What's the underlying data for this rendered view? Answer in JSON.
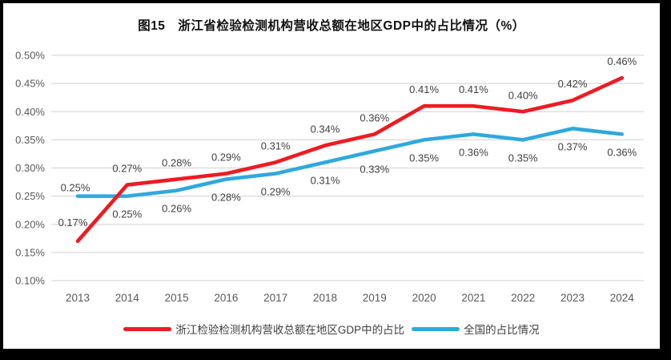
{
  "header": {
    "title": "图15　浙江省检验检测机构营收总额在地区GDP中的占比情况（%）"
  },
  "chart_data": {
    "type": "line",
    "title": "图15　浙江省检验检测机构营收总额在地区GDP中的占比情况（%）",
    "categories": [
      "2013",
      "2014",
      "2015",
      "2016",
      "2017",
      "2018",
      "2019",
      "2020",
      "2021",
      "2022",
      "2023",
      "2024"
    ],
    "series": [
      {
        "name": "浙江检验检测机构营收总额在地区GDP中的占比",
        "color": "#EE1B22",
        "values": [
          0.17,
          0.27,
          0.28,
          0.29,
          0.31,
          0.34,
          0.36,
          0.41,
          0.41,
          0.4,
          0.42,
          0.46
        ],
        "labels": [
          "0.17%",
          "0.27%",
          "0.28%",
          "0.29%",
          "0.31%",
          "0.34%",
          "0.36%",
          "0.41%",
          "0.41%",
          "0.40%",
          "0.42%",
          "0.46%"
        ],
        "label_position": "above"
      },
      {
        "name": "全国的占比情况",
        "color": "#2FA9DC",
        "values": [
          0.25,
          0.25,
          0.26,
          0.28,
          0.29,
          0.31,
          0.33,
          0.35,
          0.36,
          0.35,
          0.37,
          0.36
        ],
        "labels": [
          "0.25%",
          "0.25%",
          "0.26%",
          "0.28%",
          "0.29%",
          "0.31%",
          "0.33%",
          "0.35%",
          "0.36%",
          "0.35%",
          "0.37%",
          "0.36%"
        ],
        "label_position": "below",
        "first_label_position": "above"
      }
    ],
    "y_ticks": [
      {
        "label": "0.50%",
        "value": 0.5
      },
      {
        "label": "0.45%",
        "value": 0.45
      },
      {
        "label": "0.40%",
        "value": 0.4
      },
      {
        "label": "0.35%",
        "value": 0.35
      },
      {
        "label": "0.30%",
        "value": 0.3
      },
      {
        "label": "0.25%",
        "value": 0.25
      },
      {
        "label": "0.20%",
        "value": 0.2
      },
      {
        "label": "0.15%",
        "value": 0.15
      },
      {
        "label": "0.10%",
        "value": 0.1
      }
    ],
    "ylim": [
      0.1,
      0.5
    ],
    "xlabel": "",
    "ylabel": "",
    "grid": true,
    "legend_position": "bottom",
    "colors": {
      "grid": "#D9D9D9",
      "axis_text": "#595959",
      "label_text": "#3f3f3f",
      "title_text": "#111111"
    }
  }
}
